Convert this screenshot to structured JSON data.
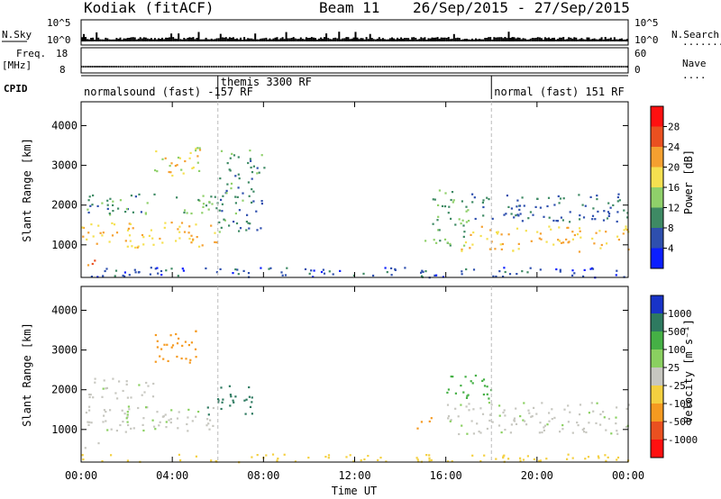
{
  "header": {
    "station": "Kodiak (fitACF)",
    "beam": "Beam 11",
    "date_range": "26/Sep/2015 - 27/Sep/2015"
  },
  "colors": {
    "power_scale": [
      "#0b1eff",
      "#2e4fae",
      "#3e8a64",
      "#8fd06a",
      "#f5e050",
      "#f5a030",
      "#ea5020",
      "#ff1010"
    ],
    "velocity_scale": [
      "#1833c8",
      "#2e7a60",
      "#45b045",
      "#8ad060",
      "#c7c7c0",
      "#f4d040",
      "#f59a20",
      "#ea5020",
      "#ff1010"
    ],
    "ground_scatter": "#c7c7c0"
  },
  "chart_data": [
    {
      "name": "summary",
      "type": "line",
      "panels": [
        {
          "left_label": "N.Sky",
          "left_ticks": [
            "10^5",
            "10^0"
          ],
          "right_ticks": [
            "10^5",
            "10^0"
          ],
          "right_label": "N.Search"
        },
        {
          "left_label": "Freq.",
          "left_unit": "[MHz]",
          "left_ticks": [
            "18",
            "8"
          ],
          "right_ticks": [
            "60",
            "0"
          ],
          "right_label": "Nave"
        }
      ],
      "cpid_label": "CPID",
      "modes": [
        {
          "label": "normalsound (fast) -157 RF",
          "start_hr": 0,
          "end_hr": 6
        },
        {
          "label": "themis 3300 RF",
          "start_hr": 6,
          "end_hr": 18
        },
        {
          "label": "normal (fast) 151 RF",
          "start_hr": 18,
          "end_hr": 24
        }
      ],
      "legend_dots": [
        "........",
        "...."
      ]
    },
    {
      "name": "power",
      "type": "heatmap",
      "xlabel": "",
      "ylabel": "Slant Range [km]",
      "xlim": [
        0,
        24
      ],
      "ylim": [
        180,
        4600
      ],
      "yticks": [
        "4000",
        "3000",
        "2000",
        "1000"
      ],
      "ytick_values": [
        4000,
        3000,
        2000,
        1000
      ],
      "colorbar_label": "Power [dB]",
      "colorbar_ticks": [
        "28",
        "24",
        "20",
        "16",
        "12",
        "8",
        "4"
      ],
      "colorbar_values": [
        28,
        24,
        20,
        16,
        12,
        8,
        4
      ],
      "regions": [
        {
          "t0": 0,
          "t1": 6.0,
          "r0": 950,
          "r1": 1600,
          "v": 20
        },
        {
          "t0": 0,
          "t1": 0.8,
          "r0": 500,
          "r1": 700,
          "v": 24
        },
        {
          "t0": 0.2,
          "t1": 3.2,
          "r0": 1700,
          "r1": 2300,
          "v": 10
        },
        {
          "t0": 3.2,
          "t1": 5.2,
          "r0": 2700,
          "r1": 3500,
          "v": 18
        },
        {
          "t0": 4.0,
          "t1": 6.0,
          "r0": 1800,
          "r1": 2300,
          "v": 12
        },
        {
          "t0": 6.0,
          "t1": 8.0,
          "r0": 1300,
          "r1": 3400,
          "v": 10
        },
        {
          "t0": 15.0,
          "t1": 17.0,
          "r0": 1000,
          "r1": 2400,
          "v": 12
        },
        {
          "t0": 16.5,
          "t1": 24,
          "r0": 850,
          "r1": 1500,
          "v": 20
        },
        {
          "t0": 17.0,
          "t1": 24,
          "r0": 1600,
          "r1": 2300,
          "v": 8
        },
        {
          "t0": 0,
          "t1": 24,
          "r0": 200,
          "r1": 450,
          "v": 6
        }
      ]
    },
    {
      "name": "velocity",
      "type": "heatmap",
      "xlabel": "Time UT",
      "ylabel": "Slant Range [km]",
      "xlim": [
        0,
        24
      ],
      "ylim": [
        180,
        4600
      ],
      "xticks": [
        "00:00",
        "04:00",
        "08:00",
        "12:00",
        "16:00",
        "20:00",
        "00:00"
      ],
      "xtick_values": [
        0,
        4,
        8,
        12,
        16,
        20,
        24
      ],
      "yticks": [
        "4000",
        "3000",
        "2000",
        "1000"
      ],
      "ytick_values": [
        4000,
        3000,
        2000,
        1000
      ],
      "colorbar_label": "Velocity [m s⁻¹]",
      "colorbar_ticks": [
        "1000",
        "500",
        "100",
        "25",
        "-25",
        "-100",
        "-500",
        "-1000"
      ],
      "colorbar_values": [
        1000,
        500,
        100,
        25,
        -25,
        -100,
        -500,
        -1000
      ],
      "regions": [
        {
          "t0": 0,
          "t1": 6.0,
          "r0": 950,
          "r1": 1600,
          "v": 0
        },
        {
          "t0": 0,
          "t1": 0.8,
          "r0": 500,
          "r1": 700,
          "v": 0
        },
        {
          "t0": 0.2,
          "t1": 3.2,
          "r0": 1700,
          "r1": 2300,
          "v": 0
        },
        {
          "t0": 3.2,
          "t1": 5.2,
          "r0": 2700,
          "r1": 3500,
          "v": -150
        },
        {
          "t0": 5.5,
          "t1": 7.5,
          "r0": 1400,
          "r1": 2200,
          "v": 120
        },
        {
          "t0": 14.7,
          "t1": 15.4,
          "r0": 1000,
          "r1": 1400,
          "v": -300
        },
        {
          "t0": 16.0,
          "t1": 24,
          "r0": 900,
          "r1": 1700,
          "v": 0
        },
        {
          "t0": 16.0,
          "t1": 18.0,
          "r0": 1800,
          "r1": 2400,
          "v": 60
        },
        {
          "t0": 0,
          "t1": 24,
          "r0": 200,
          "r1": 400,
          "v": -40
        }
      ]
    }
  ]
}
